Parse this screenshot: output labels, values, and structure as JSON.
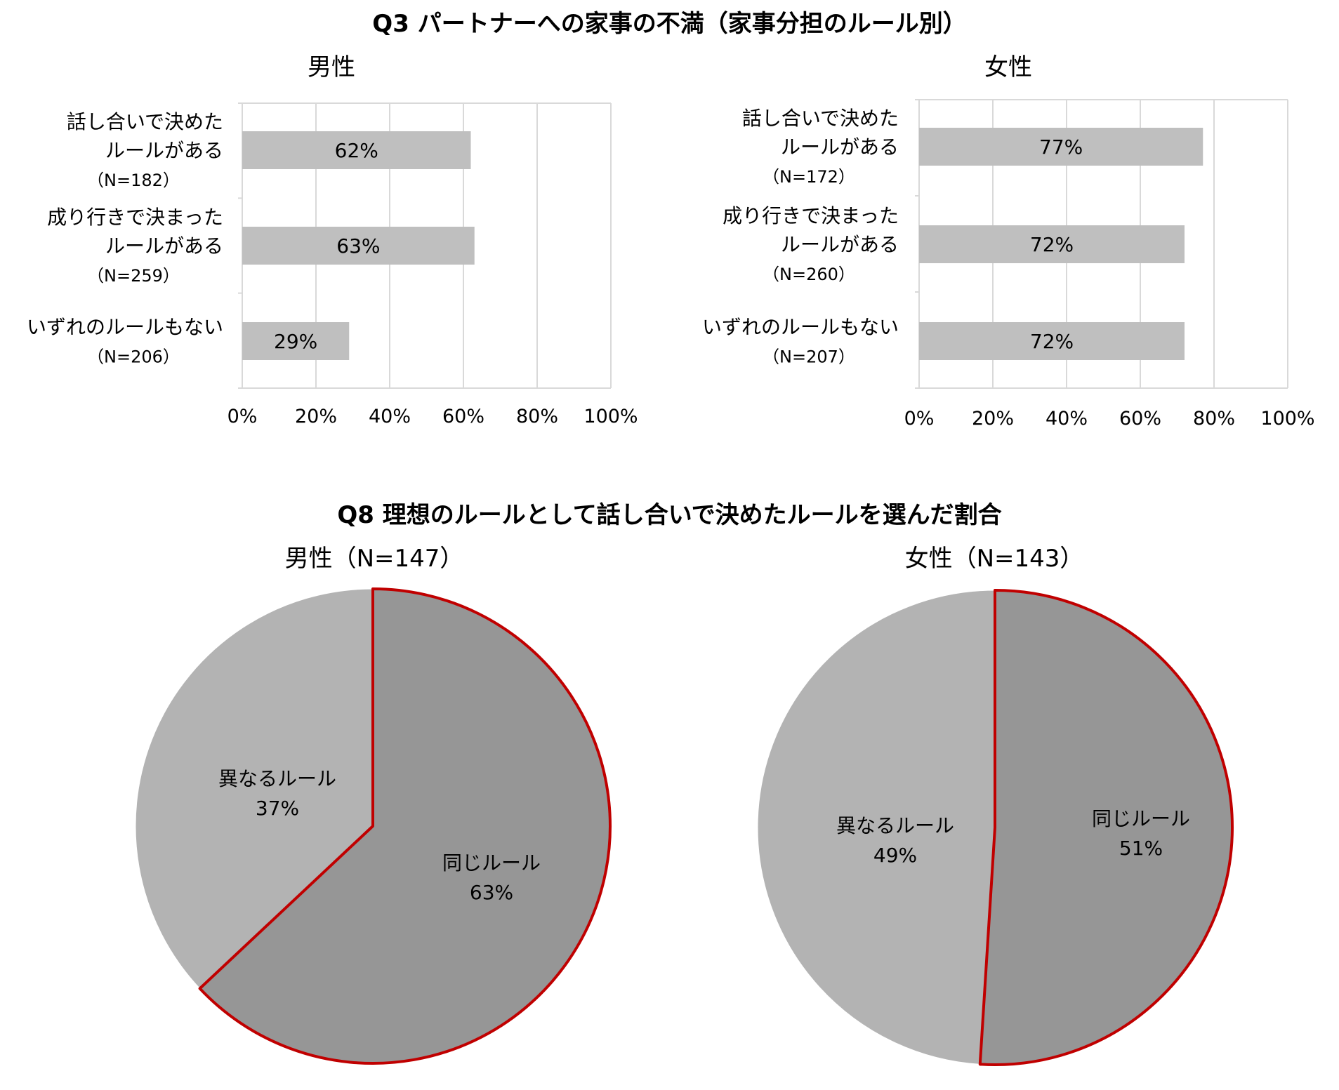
{
  "q3": {
    "title": "Q3 パートナーへの家事の不満（家事分担のルール別）"
  },
  "q8": {
    "title": "Q8 理想のルールとして話し合いで決めたルールを選んだ割合"
  },
  "colors": {
    "bar": "#bfbfbf",
    "grid": "#d9d9d9",
    "pie_same": "#969696",
    "pie_diff": "#b3b3b3",
    "highlight": "#c00000"
  },
  "chart_data": [
    {
      "type": "bar",
      "orientation": "horizontal",
      "title": "男性",
      "categories": [
        [
          "話し合いで決めた",
          "ルールがある",
          "（N=182）"
        ],
        [
          "成り行きで決まった",
          "ルールがある",
          "（N=259）"
        ],
        [
          "いずれのルールもない",
          "（N=206）"
        ]
      ],
      "values": [
        62,
        63,
        29
      ],
      "value_labels": [
        "62%",
        "63%",
        "29%"
      ],
      "xlim": [
        0,
        100
      ],
      "ticks": [
        "0%",
        "20%",
        "40%",
        "60%",
        "80%",
        "100%"
      ],
      "grid": true
    },
    {
      "type": "bar",
      "orientation": "horizontal",
      "title": "女性",
      "categories": [
        [
          "話し合いで決めた",
          "ルールがある",
          "（N=172）"
        ],
        [
          "成り行きで決まった",
          "ルールがある",
          "（N=260）"
        ],
        [
          "いずれのルールもない",
          "（N=207）"
        ]
      ],
      "values": [
        77,
        72,
        72
      ],
      "value_labels": [
        "77%",
        "72%",
        "72%"
      ],
      "xlim": [
        0,
        100
      ],
      "ticks": [
        "0%",
        "20%",
        "40%",
        "60%",
        "80%",
        "100%"
      ],
      "grid": true
    },
    {
      "type": "pie",
      "title": "男性（N=147）",
      "slices": [
        {
          "label": "同じルール",
          "value": 63,
          "value_label": "63%",
          "highlight": true
        },
        {
          "label": "異なるルール",
          "value": 37,
          "value_label": "37%",
          "highlight": false
        }
      ]
    },
    {
      "type": "pie",
      "title": "女性（N=143）",
      "slices": [
        {
          "label": "同じルール",
          "value": 51,
          "value_label": "51%",
          "highlight": true
        },
        {
          "label": "異なるルール",
          "value": 49,
          "value_label": "49%",
          "highlight": false
        }
      ]
    }
  ]
}
